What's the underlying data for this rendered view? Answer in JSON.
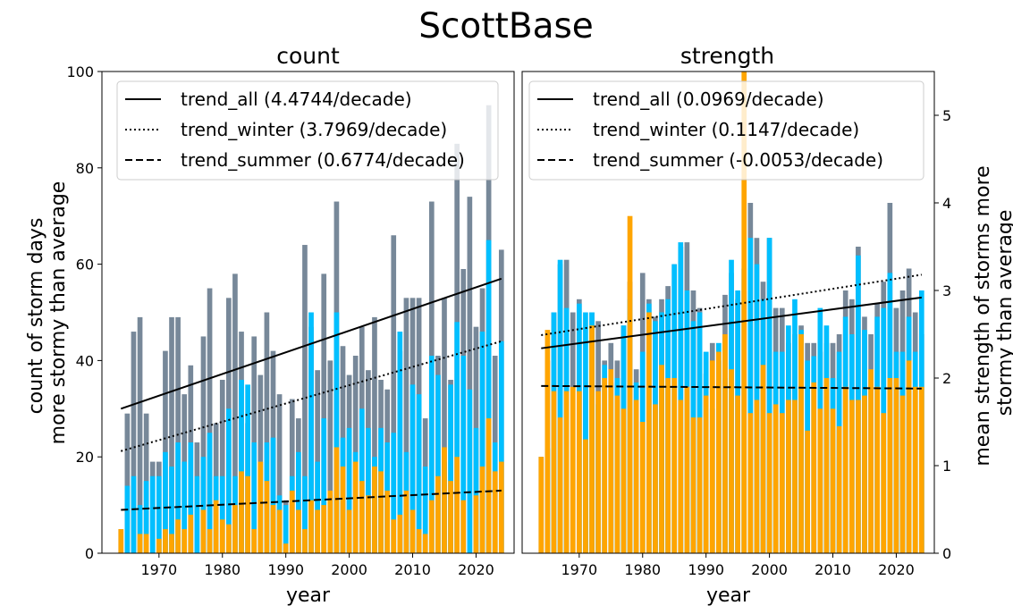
{
  "figure": {
    "suptitle": "ScottBase"
  },
  "colors": {
    "all": "#778899",
    "winter": "#00bfff",
    "summer": "#ffa500"
  },
  "chart_data": [
    {
      "type": "bar",
      "title": "count",
      "xlabel": "year",
      "ylabel": "count of storm days\nmore stormy than average",
      "xlim": [
        1961,
        2026
      ],
      "ylim": [
        0,
        100
      ],
      "xticks": [
        1970,
        1980,
        1990,
        2000,
        2010,
        2020
      ],
      "yticks": [
        0,
        20,
        40,
        60,
        80,
        100
      ],
      "legend_position": "top-left",
      "x": [
        1964,
        1965,
        1966,
        1967,
        1968,
        1969,
        1970,
        1971,
        1972,
        1973,
        1974,
        1975,
        1976,
        1977,
        1978,
        1979,
        1980,
        1981,
        1982,
        1983,
        1984,
        1985,
        1986,
        1987,
        1988,
        1989,
        1990,
        1991,
        1992,
        1993,
        1994,
        1995,
        1996,
        1997,
        1998,
        1999,
        2000,
        2001,
        2002,
        2003,
        2004,
        2005,
        2006,
        2007,
        2008,
        2009,
        2010,
        2011,
        2012,
        2013,
        2014,
        2015,
        2016,
        2017,
        2018,
        2019,
        2020,
        2021,
        2022,
        2023,
        2024
      ],
      "series": [
        {
          "name": "all",
          "values": [
            5,
            29,
            46,
            49,
            29,
            19,
            19,
            42,
            49,
            49,
            33,
            39,
            23,
            45,
            55,
            27,
            36,
            53,
            58,
            46,
            27,
            45,
            37,
            50,
            42,
            33,
            11,
            32,
            28,
            64,
            47,
            38,
            58,
            40,
            73,
            43,
            37,
            41,
            47,
            38,
            49,
            36,
            34,
            66,
            42,
            53,
            53,
            53,
            28,
            73,
            41,
            53,
            36,
            85,
            59,
            74,
            47,
            55,
            93,
            41,
            63
          ]
        },
        {
          "name": "winter",
          "values": [
            0,
            14,
            16,
            10,
            15,
            16,
            16,
            21,
            18,
            23,
            19,
            23,
            16,
            20,
            25,
            16,
            16,
            30,
            16,
            36,
            35,
            23,
            19,
            23,
            24,
            12,
            10,
            16,
            21,
            16,
            50,
            19,
            28,
            12,
            50,
            24,
            26,
            21,
            30,
            26,
            20,
            26,
            23,
            25,
            46,
            21,
            35,
            33,
            18,
            41,
            37,
            19,
            35,
            48,
            41,
            34,
            26,
            46,
            65,
            23,
            44
          ]
        },
        {
          "name": "summer",
          "values": [
            5,
            0,
            0,
            4,
            4,
            0,
            3,
            5,
            4,
            7,
            5,
            8,
            0,
            9,
            5,
            11,
            7,
            6,
            10,
            17,
            16,
            5,
            19,
            15,
            10,
            9,
            2,
            13,
            9,
            5,
            11,
            9,
            10,
            13,
            22,
            18,
            9,
            19,
            15,
            12,
            18,
            17,
            13,
            7,
            8,
            13,
            9,
            5,
            4,
            11,
            16,
            22,
            15,
            20,
            11,
            0,
            12,
            18,
            28,
            17,
            19
          ]
        }
      ],
      "trend_lines": [
        {
          "name": "trend_all",
          "label": "trend_all (4.4744/decade)",
          "style": "solid",
          "points": [
            [
              1964,
              30
            ],
            [
              2024,
              57
            ]
          ]
        },
        {
          "name": "trend_winter",
          "label": "trend_winter (3.7969/decade)",
          "style": "dotted",
          "points": [
            [
              1964,
              21.2
            ],
            [
              2024,
              44
            ]
          ]
        },
        {
          "name": "trend_summer",
          "label": "trend_summer (0.6774/decade)",
          "style": "dashed",
          "points": [
            [
              1964,
              9
            ],
            [
              2024,
              13
            ]
          ]
        }
      ]
    },
    {
      "type": "bar",
      "title": "strength",
      "xlabel": "year",
      "ylabel": "mean strength of storms more\nstormy than average",
      "ylabel_position": "right",
      "xlim": [
        1961,
        2026
      ],
      "ylim": [
        0,
        5.5
      ],
      "xticks": [
        1970,
        1980,
        1990,
        2000,
        2010,
        2020
      ],
      "yticks": [
        0,
        1,
        2,
        3,
        4,
        5
      ],
      "legend_position": "top-left",
      "x": [
        1964,
        1965,
        1966,
        1967,
        1968,
        1969,
        1970,
        1971,
        1972,
        1973,
        1974,
        1975,
        1976,
        1977,
        1978,
        1979,
        1980,
        1981,
        1982,
        1983,
        1984,
        1985,
        1986,
        1987,
        1988,
        1989,
        1990,
        1991,
        1992,
        1993,
        1994,
        1995,
        1996,
        1997,
        1998,
        1999,
        2000,
        2001,
        2002,
        2003,
        2004,
        2005,
        2006,
        2007,
        2008,
        2009,
        2010,
        2011,
        2012,
        2013,
        2014,
        2015,
        2016,
        2017,
        2018,
        2019,
        2020,
        2021,
        2022,
        2023,
        2024
      ],
      "series": [
        {
          "name": "all",
          "values": [
            1.1,
            2.2,
            2.75,
            3.3,
            3.35,
            2.75,
            2.9,
            1.9,
            2.75,
            2.65,
            2.2,
            2.4,
            2.2,
            2.6,
            3.1,
            2.1,
            3.2,
            2.9,
            2.7,
            2.9,
            3.05,
            3.3,
            3.5,
            3.55,
            3.0,
            2.8,
            2.05,
            2.4,
            2.2,
            2.95,
            3.2,
            2.9,
            3.0,
            4.0,
            3.6,
            3.1,
            3.6,
            2.8,
            2.8,
            2.4,
            2.5,
            2.6,
            2.4,
            2.4,
            2.3,
            2.4,
            2.4,
            2.5,
            3.0,
            2.9,
            3.5,
            2.7,
            2.5,
            2.85,
            3.1,
            4.0,
            2.8,
            3.0,
            3.25,
            2.75,
            2.5
          ]
        },
        {
          "name": "winter",
          "values": [
            0,
            1.2,
            2.75,
            3.35,
            2.8,
            0,
            2.85,
            2.75,
            2.75,
            1.7,
            2.15,
            1.95,
            2.0,
            2.6,
            2.9,
            1.95,
            2.3,
            2.85,
            2.65,
            2.75,
            2.9,
            3.3,
            3.55,
            3.0,
            2.65,
            2.75,
            2.3,
            1.65,
            2.4,
            2.0,
            3.35,
            3.0,
            3.25,
            3.6,
            3.3,
            2.9,
            3.6,
            2.3,
            2.3,
            2.6,
            2.9,
            2.55,
            2.2,
            2.25,
            2.8,
            2.6,
            2.0,
            2.3,
            2.7,
            2.5,
            3.4,
            2.55,
            0,
            2.7,
            2.8,
            3.2,
            2.3,
            2.3,
            2.7,
            2.3,
            3.0
          ]
        },
        {
          "name": "summer",
          "values": [
            1.1,
            2.55,
            1.85,
            1.55,
            1.85,
            1.9,
            1.85,
            1.3,
            2.6,
            1.85,
            2.0,
            2.1,
            1.8,
            1.65,
            3.85,
            1.75,
            1.5,
            2.75,
            1.7,
            2.15,
            2.0,
            2.0,
            1.75,
            1.9,
            1.55,
            1.55,
            1.8,
            2.2,
            2.3,
            2.5,
            2.1,
            1.8,
            5.5,
            1.6,
            1.75,
            2.15,
            1.6,
            1.7,
            1.6,
            1.75,
            1.75,
            2.5,
            1.4,
            1.95,
            1.65,
            2.0,
            1.65,
            1.45,
            1.9,
            1.75,
            1.75,
            1.8,
            2.1,
            1.9,
            1.6,
            2.0,
            2.0,
            1.8,
            2.2,
            1.9,
            1.9
          ]
        }
      ],
      "trend_lines": [
        {
          "name": "trend_all",
          "label": "trend_all (0.0969/decade)",
          "style": "solid",
          "points": [
            [
              1964,
              2.34
            ],
            [
              2024,
              2.92
            ]
          ]
        },
        {
          "name": "trend_winter",
          "label": "trend_winter (0.1147/decade)",
          "style": "dotted",
          "points": [
            [
              1964,
              2.49
            ],
            [
              2024,
              3.18
            ]
          ]
        },
        {
          "name": "trend_summer",
          "label": "trend_summer (-0.0053/decade)",
          "style": "dashed",
          "points": [
            [
              1964,
              1.91
            ],
            [
              2024,
              1.88
            ]
          ]
        }
      ]
    }
  ]
}
